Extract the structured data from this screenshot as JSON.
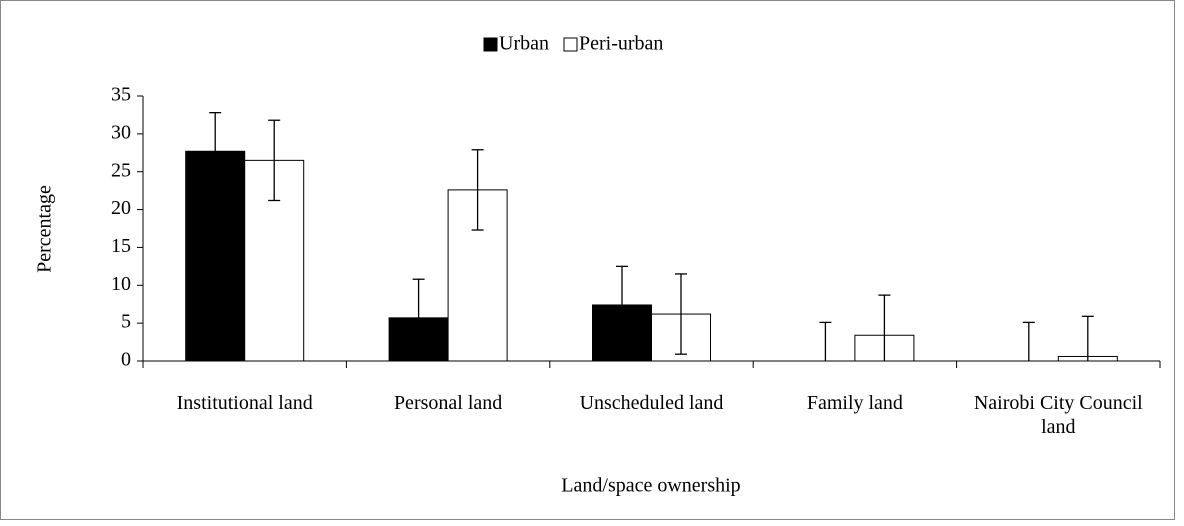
{
  "chart_data": {
    "type": "bar",
    "categories": [
      "Institutional land",
      "Personal land",
      "Unscheduled land",
      "Family land",
      "Nairobi City Council land"
    ],
    "series": [
      {
        "name": "Urban",
        "color": "#000000",
        "values": [
          27.7,
          5.7,
          7.4,
          0,
          0
        ],
        "errors": [
          5.1,
          5.1,
          5.1,
          5.1,
          5.1
        ]
      },
      {
        "name": "Peri-urban",
        "color": "#ffffff",
        "values": [
          26.5,
          22.6,
          6.2,
          3.4,
          0.6
        ],
        "errors": [
          5.3,
          5.3,
          5.3,
          5.3,
          5.3
        ]
      }
    ],
    "ylim": [
      0,
      35
    ],
    "yticks": [
      0,
      5,
      10,
      15,
      20,
      25,
      30,
      35
    ],
    "y_label": "Percentage",
    "x_label": "Land/space ownership",
    "legend": "top"
  }
}
